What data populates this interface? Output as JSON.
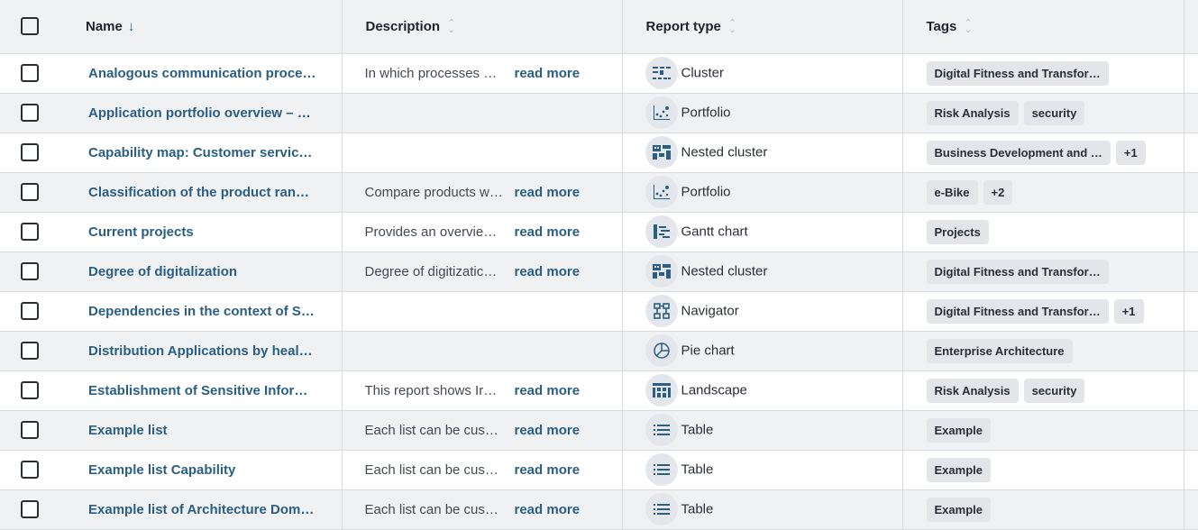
{
  "header": {
    "name": "Name",
    "description": "Description",
    "report_type": "Report type",
    "tags": "Tags",
    "sort_desc": "↓",
    "sort_both": "⇳"
  },
  "read_more": "read more",
  "rows": [
    {
      "name": "Analogous communication proce…",
      "description": "In which processes …",
      "type": "Cluster",
      "icon": "cluster-icon",
      "tags": [
        "Digital Fitness and Transfor…"
      ]
    },
    {
      "name": "Application portfolio overview – …",
      "description": "",
      "type": "Portfolio",
      "icon": "portfolio-icon",
      "tags": [
        "Risk Analysis",
        "security"
      ]
    },
    {
      "name": "Capability map: Customer servic…",
      "description": "",
      "type": "Nested cluster",
      "icon": "nested-cluster-icon",
      "tags": [
        "Business Development and …",
        "+1"
      ]
    },
    {
      "name": "Classification of the product ran…",
      "description": "Compare products w…",
      "type": "Portfolio",
      "icon": "portfolio-icon",
      "tags": [
        "e-Bike",
        "+2"
      ]
    },
    {
      "name": "Current projects",
      "description": "Provides an overvie…",
      "type": "Gantt chart",
      "icon": "gantt-chart-icon",
      "tags": [
        "Projects"
      ]
    },
    {
      "name": "Degree of digitalization",
      "description": "Degree of digitizatic…",
      "type": "Nested cluster",
      "icon": "nested-cluster-icon",
      "tags": [
        "Digital Fitness and Transfor…"
      ]
    },
    {
      "name": "Dependencies in the context of S…",
      "description": "",
      "type": "Navigator",
      "icon": "navigator-icon",
      "tags": [
        "Digital Fitness and Transfor…",
        "+1"
      ]
    },
    {
      "name": "Distribution Applications by heal…",
      "description": "",
      "type": "Pie chart",
      "icon": "pie-chart-icon",
      "tags": [
        "Enterprise Architecture"
      ]
    },
    {
      "name": "Establishment of Sensitive Infor…",
      "description": "This report shows Ir…",
      "type": "Landscape",
      "icon": "landscape-icon",
      "tags": [
        "Risk Analysis",
        "security"
      ]
    },
    {
      "name": "Example list",
      "description": "Each list can be cus…",
      "type": "Table",
      "icon": "table-icon",
      "tags": [
        "Example"
      ]
    },
    {
      "name": "Example list Capability",
      "description": "Each list can be cus…",
      "type": "Table",
      "icon": "table-icon",
      "tags": [
        "Example"
      ]
    },
    {
      "name": "Example list of Architecture Dom…",
      "description": "Each list can be cus…",
      "type": "Table",
      "icon": "table-icon",
      "tags": [
        "Example"
      ]
    }
  ]
}
